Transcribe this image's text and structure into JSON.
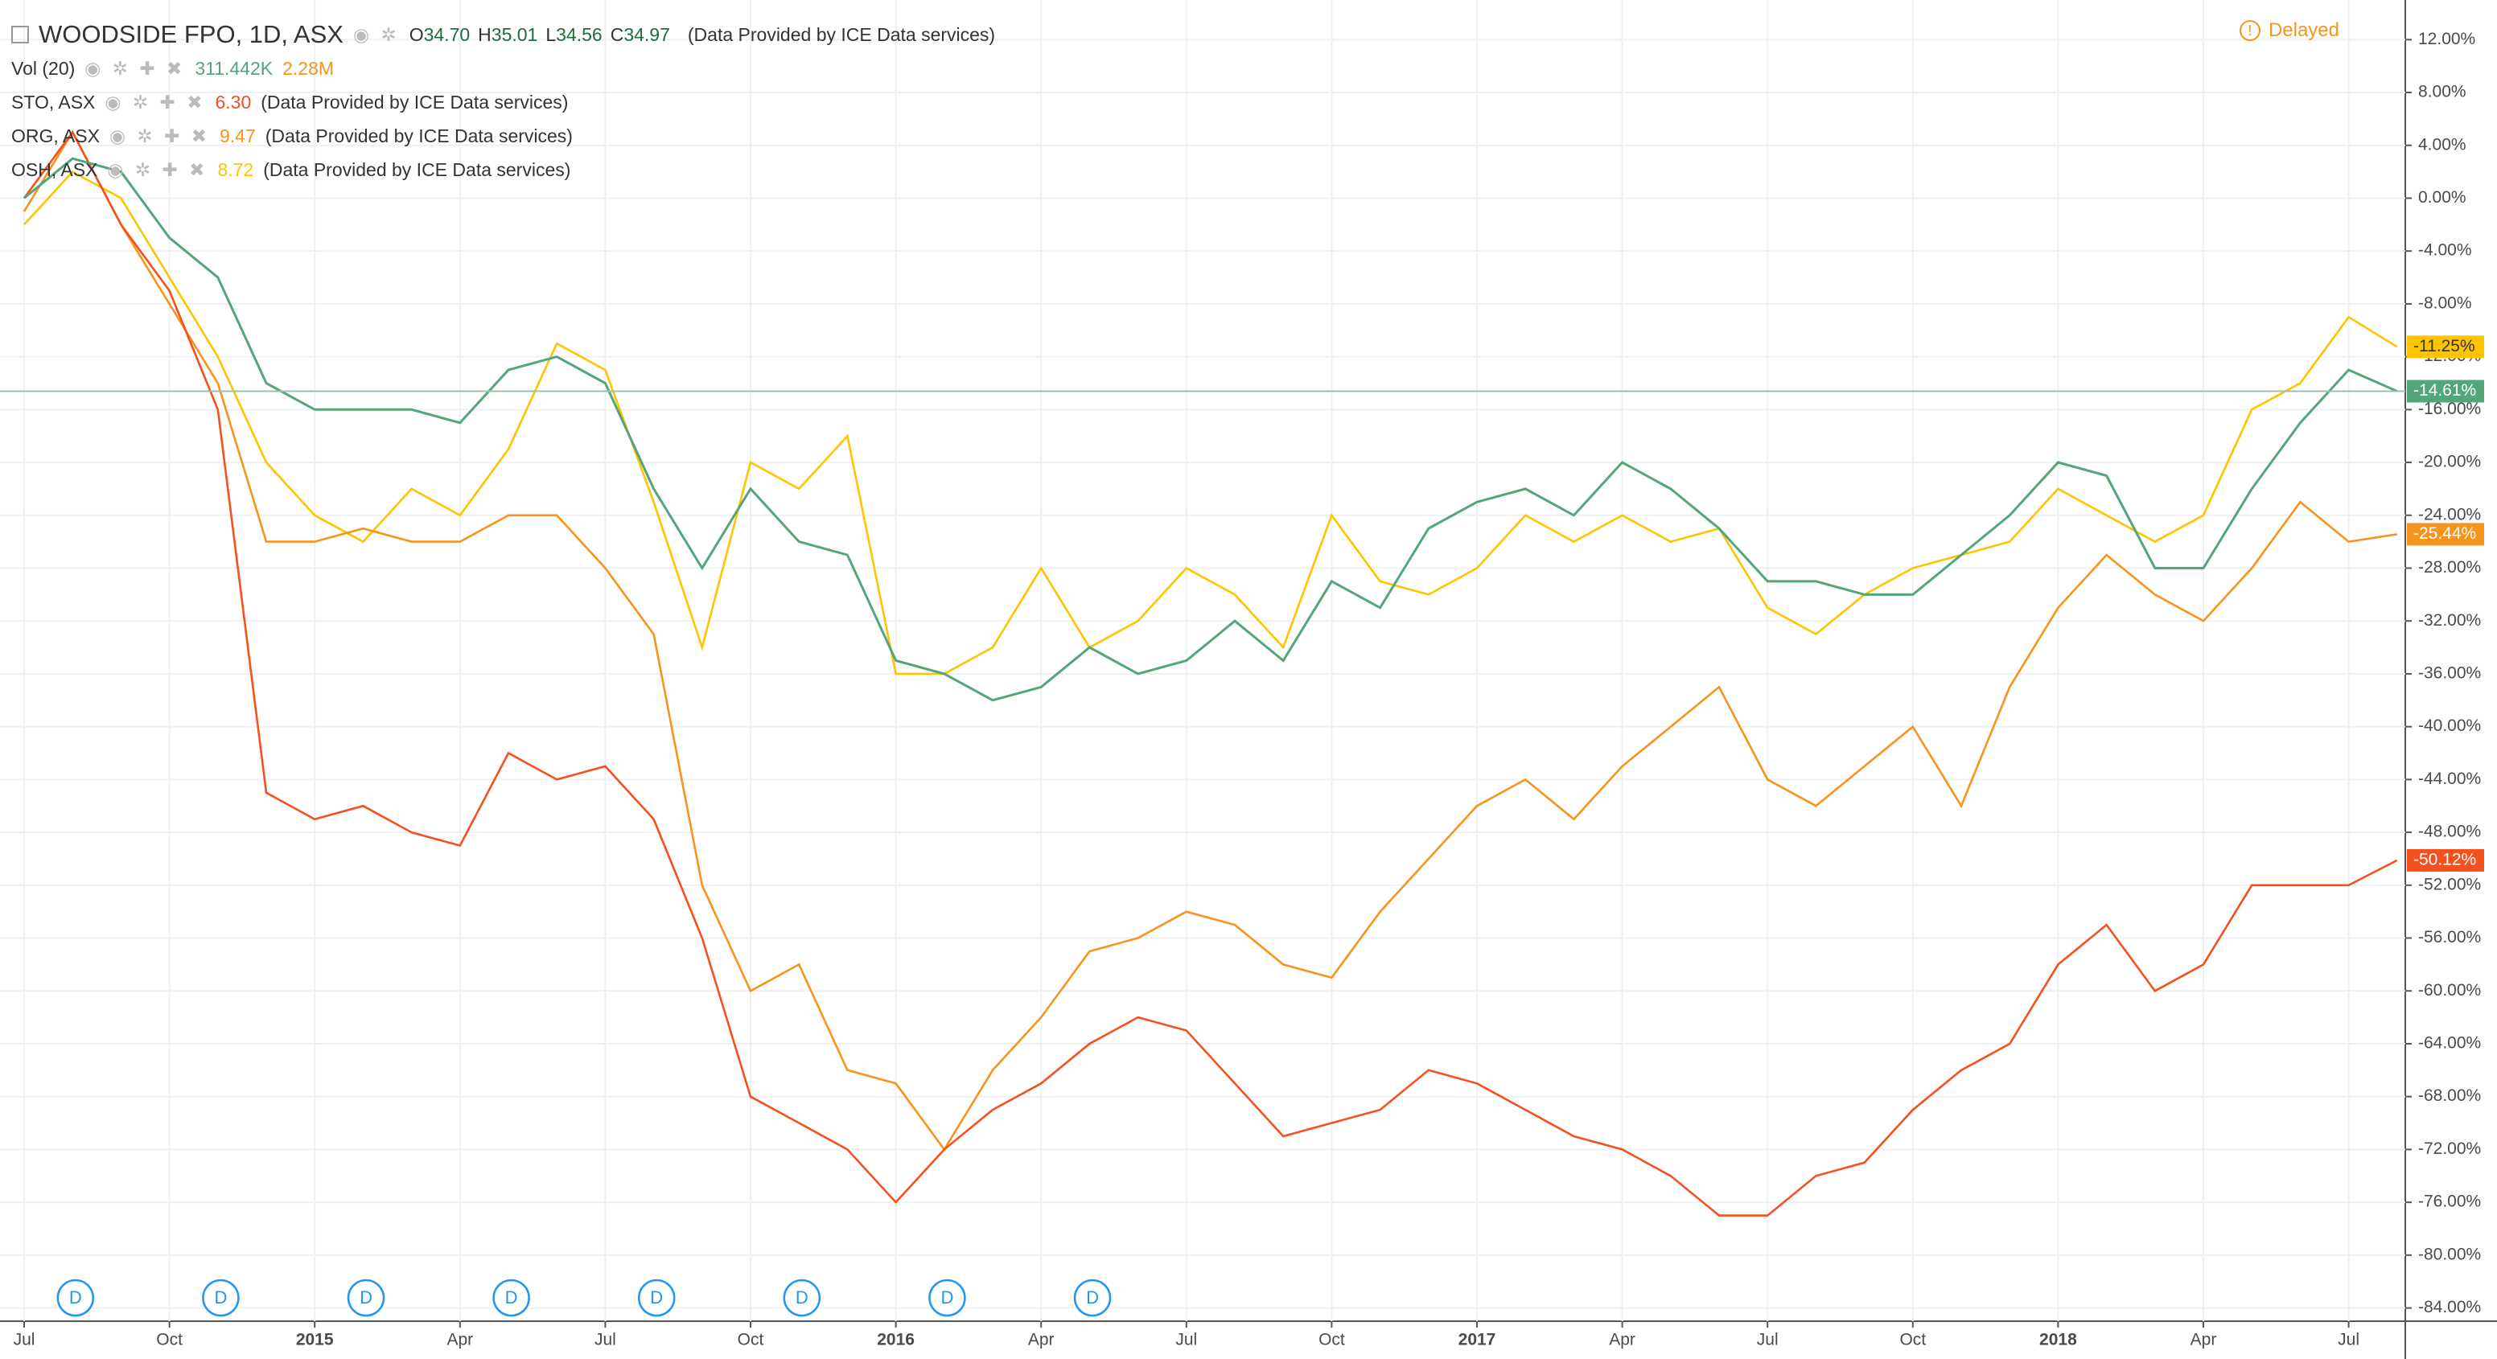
{
  "header": {
    "ohlc": [
      {
        "letter": "O",
        "value": "34.70"
      },
      {
        "letter": "H",
        "value": "35.01"
      },
      {
        "letter": "L",
        "value": "34.56"
      },
      {
        "letter": "C",
        "value": "34.97"
      }
    ],
    "source": "(Data Provided by ICE Data services)",
    "status": "Delayed",
    "volume": {
      "name": "Vol (20)",
      "value": "311.442K",
      "ma": "2.28M"
    },
    "dividend_label": "D"
  },
  "chart_data": {
    "type": "line",
    "categories": [
      "Jul",
      null,
      null,
      "Oct",
      null,
      null,
      "2015",
      null,
      null,
      "Apr",
      null,
      null,
      "Jul",
      null,
      null,
      "Oct",
      null,
      null,
      "2016",
      null,
      null,
      "Apr",
      null,
      null,
      "Jul",
      null,
      null,
      "Oct",
      null,
      null,
      "2017",
      null,
      null,
      "Apr",
      null,
      null,
      "Jul",
      null,
      null,
      "Oct",
      null,
      null,
      "2018",
      null,
      null,
      "Apr",
      null,
      null,
      "Jul",
      null
    ],
    "ylim": [
      15,
      -85
    ],
    "yticks": [
      {
        "value": 12,
        "label": "12.00%"
      },
      {
        "value": 8,
        "label": "8.00%"
      },
      {
        "value": 4,
        "label": "4.00%"
      },
      {
        "value": 0,
        "label": "0.00%"
      },
      {
        "value": -4,
        "label": "-4.00%"
      },
      {
        "value": -8,
        "label": "-8.00%"
      },
      {
        "value": -12,
        "label": "-12.00%"
      },
      {
        "value": -16,
        "label": "-16.00%"
      },
      {
        "value": -20,
        "label": "-20.00%"
      },
      {
        "value": -24,
        "label": "-24.00%"
      },
      {
        "value": -28,
        "label": "-28.00%"
      },
      {
        "value": -32,
        "label": "-32.00%"
      },
      {
        "value": -36,
        "label": "-36.00%"
      },
      {
        "value": -40,
        "label": "-40.00%"
      },
      {
        "value": -44,
        "label": "-44.00%"
      },
      {
        "value": -48,
        "label": "-48.00%"
      },
      {
        "value": -52,
        "label": "-52.00%"
      },
      {
        "value": -56,
        "label": "-56.00%"
      },
      {
        "value": -60,
        "label": "-60.00%"
      },
      {
        "value": -64,
        "label": "-64.00%"
      },
      {
        "value": -68,
        "label": "-68.00%"
      },
      {
        "value": -72,
        "label": "-72.00%"
      },
      {
        "value": -76,
        "label": "-76.00%"
      },
      {
        "value": -80,
        "label": "-80.00%"
      },
      {
        "value": -84,
        "label": "-84.00%"
      }
    ],
    "grid": true,
    "dividends": [
      1,
      4,
      7,
      10,
      13,
      16,
      19,
      22
    ],
    "series": [
      {
        "name": "WOODSIDE FPO, 1D, ASX",
        "color": "#53a57a",
        "values": [
          0,
          3,
          2,
          -3,
          -6,
          -14,
          -16,
          -16,
          -16,
          -17,
          -13,
          -12,
          -14,
          -22,
          -28,
          -22,
          -26,
          -27,
          -35,
          -36,
          -38,
          -37,
          -34,
          -36,
          -35,
          -32,
          -35,
          -29,
          -31,
          -25,
          -23,
          -22,
          -24,
          -20,
          -22,
          -25,
          -29,
          -29,
          -30,
          -30,
          -27,
          -24,
          -20,
          -21,
          -28,
          -28,
          -22,
          -17,
          -13,
          -14.61
        ],
        "value_labels": [
          null,
          null,
          null,
          null,
          null,
          null,
          null,
          null,
          null,
          null,
          null,
          null,
          null,
          null,
          null,
          null,
          null,
          null,
          null,
          null,
          null,
          null,
          null,
          null,
          null,
          null,
          null,
          null,
          null,
          null,
          null,
          null,
          null,
          null,
          null,
          null,
          null,
          null,
          null,
          null,
          null,
          null,
          null,
          null,
          null,
          null,
          null,
          null,
          null,
          "-14.61%"
        ]
      },
      {
        "name": "STO, ASX",
        "color": "#f4511e",
        "price": "6.30",
        "values": [
          0,
          5,
          -2,
          -7,
          -16,
          -45,
          -47,
          -46,
          -48,
          -49,
          -42,
          -44,
          -43,
          -47,
          -56,
          -68,
          -70,
          -72,
          -76,
          -72,
          -69,
          -67,
          -64,
          -62,
          -63,
          -67,
          -71,
          -70,
          -69,
          -66,
          -67,
          -69,
          -71,
          -72,
          -74,
          -77,
          -77,
          -74,
          -73,
          -69,
          -66,
          -64,
          -58,
          -55,
          -60,
          -58,
          -52,
          -52,
          -52,
          -50.12
        ],
        "value_labels": [
          null,
          null,
          null,
          null,
          null,
          null,
          null,
          null,
          null,
          null,
          null,
          null,
          null,
          null,
          null,
          null,
          null,
          null,
          null,
          null,
          null,
          null,
          null,
          null,
          null,
          null,
          null,
          null,
          null,
          null,
          null,
          null,
          null,
          null,
          null,
          null,
          null,
          null,
          null,
          null,
          null,
          null,
          null,
          null,
          null,
          null,
          null,
          null,
          null,
          "-50.12%"
        ]
      },
      {
        "name": "ORG, ASX",
        "color": "#f7941d",
        "price": "9.47",
        "values": [
          -1,
          5,
          -2,
          -8,
          -14,
          -26,
          -26,
          -25,
          -26,
          -26,
          -24,
          -24,
          -28,
          -33,
          -52,
          -60,
          -58,
          -66,
          -67,
          -72,
          -66,
          -62,
          -57,
          -56,
          -54,
          -55,
          -58,
          -59,
          -54,
          -50,
          -46,
          -44,
          -47,
          -43,
          -40,
          -37,
          -44,
          -46,
          -43,
          -40,
          -46,
          -37,
          -31,
          -27,
          -30,
          -32,
          -28,
          -23,
          -26,
          -25.44
        ],
        "value_labels": [
          null,
          null,
          null,
          null,
          null,
          null,
          null,
          null,
          null,
          null,
          null,
          null,
          null,
          null,
          null,
          null,
          null,
          null,
          null,
          null,
          null,
          null,
          null,
          null,
          null,
          null,
          null,
          null,
          null,
          null,
          null,
          null,
          null,
          null,
          null,
          null,
          null,
          null,
          null,
          null,
          null,
          null,
          null,
          null,
          null,
          null,
          null,
          null,
          null,
          "-25.44%"
        ]
      },
      {
        "name": "OSH, ASX",
        "color": "#ffc400",
        "price": "8.72",
        "values": [
          -2,
          2,
          0,
          -6,
          -12,
          -20,
          -24,
          -26,
          -22,
          -24,
          -19,
          -11,
          -13,
          -23,
          -34,
          -20,
          -22,
          -18,
          -36,
          -36,
          -34,
          -28,
          -34,
          -32,
          -28,
          -30,
          -34,
          -24,
          -29,
          -30,
          -28,
          -24,
          -26,
          -24,
          -26,
          -25,
          -31,
          -33,
          -30,
          -28,
          -27,
          -26,
          -22,
          -24,
          -26,
          -24,
          -16,
          -14,
          -9,
          -11.25
        ],
        "value_labels": [
          null,
          null,
          null,
          null,
          null,
          null,
          null,
          null,
          null,
          null,
          null,
          null,
          null,
          null,
          null,
          null,
          null,
          null,
          null,
          null,
          null,
          null,
          null,
          null,
          null,
          null,
          null,
          null,
          null,
          null,
          null,
          null,
          null,
          null,
          null,
          null,
          null,
          null,
          null,
          null,
          null,
          null,
          null,
          null,
          null,
          null,
          null,
          null,
          null,
          "-11.25%"
        ]
      }
    ]
  }
}
